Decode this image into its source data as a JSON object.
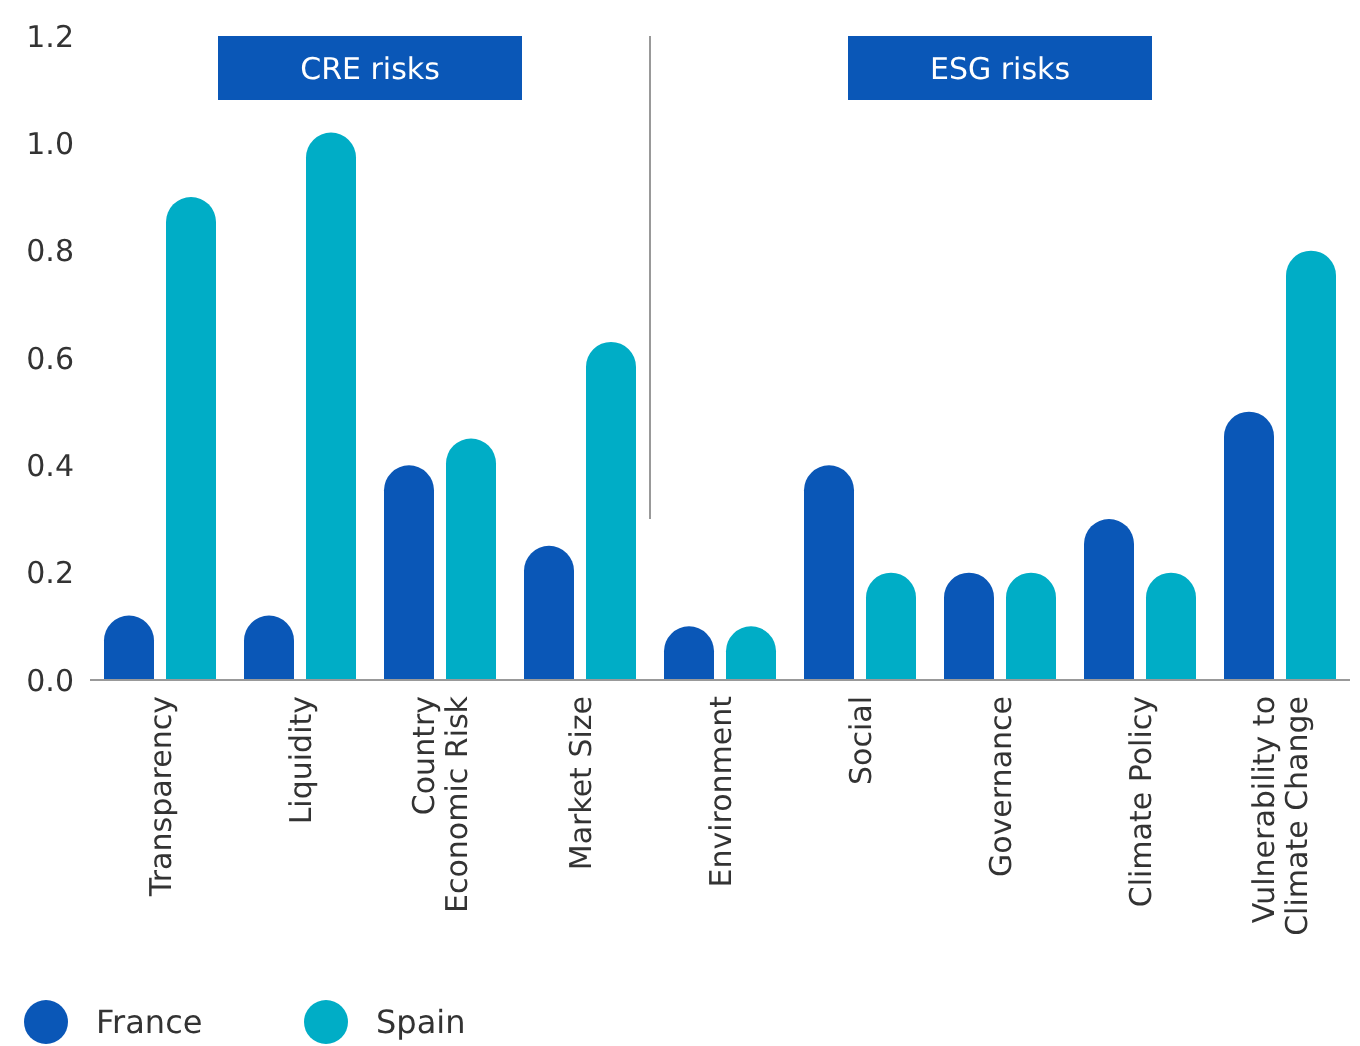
{
  "chart_data": {
    "type": "bar",
    "categories": [
      "Transparency",
      "Liquidity",
      "Country\nEconomic Risk",
      "Market Size",
      "Environment",
      "Social",
      "Governance",
      "Climate Policy",
      "Vulnerability to\nClimate Change"
    ],
    "series": [
      {
        "name": "France",
        "color": "#0a57b7",
        "values": [
          0.12,
          0.12,
          0.4,
          0.25,
          0.1,
          0.4,
          0.2,
          0.3,
          0.5
        ]
      },
      {
        "name": "Spain",
        "color": "#00adc6",
        "values": [
          0.9,
          1.02,
          0.45,
          0.63,
          0.1,
          0.2,
          0.2,
          0.2,
          0.8
        ]
      }
    ],
    "ylim": [
      0,
      1.2
    ],
    "yticks": [
      {
        "value": 0,
        "label": "0.0"
      },
      {
        "value": 0.2,
        "label": "0.2"
      },
      {
        "value": 0.4,
        "label": "0.4"
      },
      {
        "value": 0.6,
        "label": "0.6"
      },
      {
        "value": 0.8,
        "label": "0.8"
      },
      {
        "value": 1,
        "label": "1.0"
      },
      {
        "value": 1.2,
        "label": "1.2"
      }
    ],
    "grid": false,
    "legend": "bottom left",
    "annotations": [
      "CRE risks",
      "ESG risks"
    ]
  }
}
